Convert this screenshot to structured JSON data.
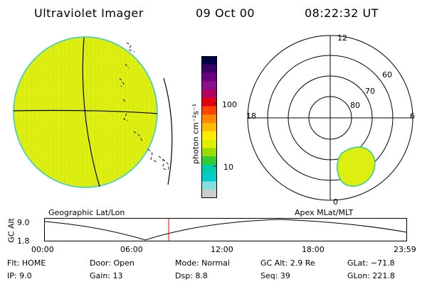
{
  "header": {
    "instrument": "Ultraviolet Imager",
    "date": "09 Oct 00",
    "time": "08:22:32 UT"
  },
  "colorbar": {
    "unit_label": "photon cm⁻²s⁻¹",
    "tick_labels": [
      "100",
      "10"
    ],
    "colors": [
      "#000044",
      "#3a0066",
      "#6a0080",
      "#8a1090",
      "#b00060",
      "#e00010",
      "#ff4400",
      "#ff8800",
      "#ffbb00",
      "#ffee00",
      "#ddee00",
      "#99dd00",
      "#33cc33",
      "#00ccaa",
      "#00cccc",
      "#88dddd",
      "#cccccc"
    ]
  },
  "left_panel": {
    "label": "Geographic Lat/Lon",
    "disk_color": "#ddee11"
  },
  "right_panel": {
    "label": "Apex MLat/MLT",
    "mlt_labels": [
      "12",
      "18",
      "6",
      "0"
    ],
    "mlat_labels": [
      "60",
      "70",
      "80"
    ],
    "blob_color": "#ddee11"
  },
  "timeline": {
    "axis_label": "GC Alt",
    "y_top": "9.0",
    "y_bottom": "1.8",
    "time_labels": [
      "00:00",
      "06:00",
      "12:00",
      "18:00",
      "23:59"
    ],
    "marker_color": "#ff0000"
  },
  "status": {
    "flt": "Flt: HOME",
    "ip": "IP:  9.0",
    "door": "Door: Open",
    "gain": "Gain: 13",
    "mode": "Mode:  Normal",
    "dsp": "Dsp:     8.8",
    "gcalt": "GC Alt:  2.9 Re",
    "seq": "Seq:  39",
    "glat": "GLat:  −71.8",
    "glon": "GLon:  221.8"
  }
}
